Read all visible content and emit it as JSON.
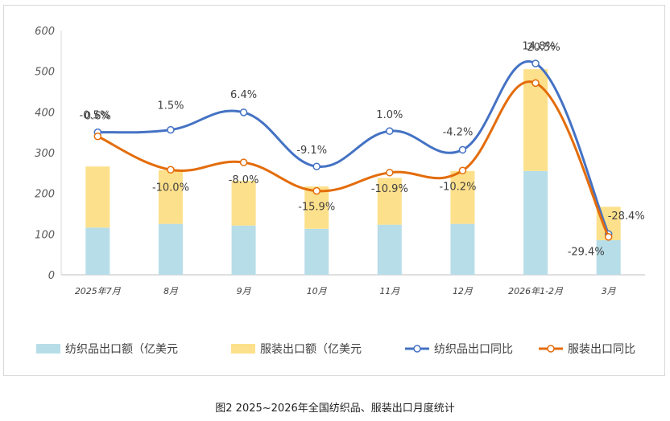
{
  "chart_data": {
    "type": "bar+line",
    "categories": [
      "2025年7月",
      "8月",
      "9月",
      "10月",
      "11月",
      "12月",
      "2026年1-2月",
      "3月"
    ],
    "ylim": [
      0,
      600
    ],
    "yticks": [
      0,
      100,
      200,
      300,
      400,
      500,
      600
    ],
    "stacked_bars": [
      {
        "name": "纺织品出口额（亿美元",
        "color": "#b7dde8",
        "values": [
          116,
          125,
          121,
          113,
          123,
          125,
          255,
          85
        ]
      },
      {
        "name": "服装出口额（亿美元",
        "color": "#fde08b",
        "values": [
          150,
          132,
          110,
          104,
          115,
          130,
          250,
          82
        ]
      }
    ],
    "lines": [
      {
        "name": "纺织品出口同比",
        "color": "#4472c4",
        "plot_values": [
          350,
          356,
          399,
          266,
          353,
          307,
          519,
          100
        ],
        "labels": [
          "0.6%",
          "1.5%",
          "6.4%",
          "-9.1%",
          "1.0%",
          "-4.2%",
          "20.5%",
          "-29.4%"
        ]
      },
      {
        "name": "服装出口同比",
        "color": "#e46c0a",
        "plot_values": [
          340,
          258,
          276,
          206,
          251,
          256,
          471,
          93
        ],
        "labels": [
          "-0.5%",
          "-10.0%",
          "-8.0%",
          "-15.9%",
          "-10.9%",
          "-10.2%",
          "14.8%",
          "-28.4%"
        ]
      }
    ],
    "legend_position": "bottom",
    "grid": false
  },
  "caption": "图2  2025~2026年全国纺织品、服装出口月度统计"
}
